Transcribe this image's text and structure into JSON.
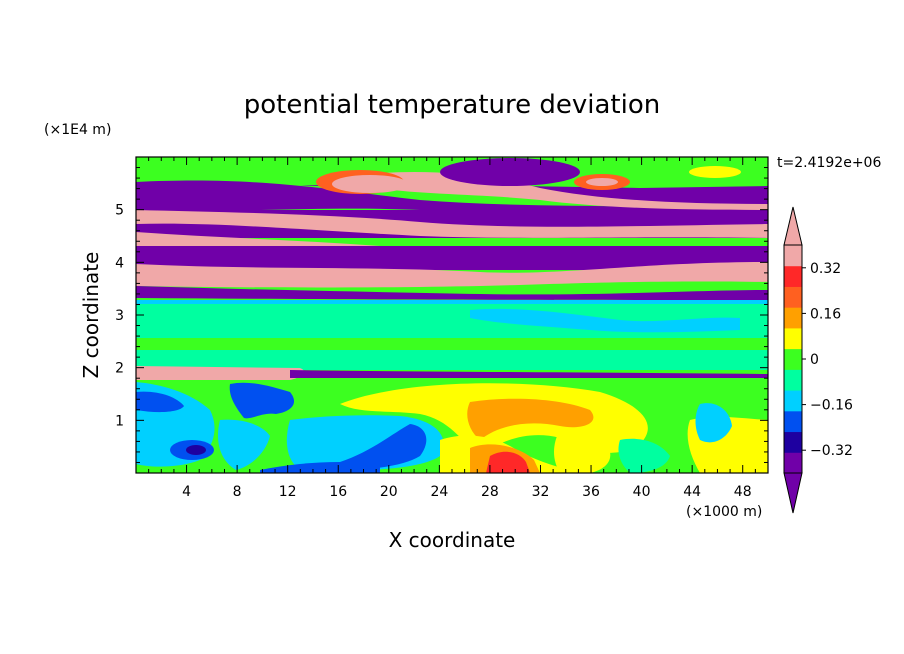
{
  "chart_data": {
    "type": "heatmap",
    "title": "potential temperature deviation",
    "xlabel": "X coordinate",
    "ylabel": "Z coordinate",
    "x_unit": "(×1000 m)",
    "y_unit": "(×1E4 m)",
    "time_label": "t=2.4192e+06",
    "xlim": [
      0,
      50
    ],
    "ylim": [
      0,
      6
    ],
    "x_ticks": [
      4,
      8,
      12,
      16,
      20,
      24,
      28,
      32,
      36,
      40,
      44,
      48
    ],
    "x_tick_labels": [
      "4",
      "8",
      "12",
      "16",
      "20",
      "24",
      "28",
      "32",
      "36",
      "40",
      "44",
      "48"
    ],
    "y_ticks": [
      1,
      2,
      3,
      4,
      5
    ],
    "y_tick_labels": [
      "1",
      "2",
      "3",
      "4",
      "5"
    ],
    "colorbar": {
      "levels": [
        -0.4,
        -0.32,
        -0.24,
        -0.16,
        -0.08,
        0,
        0.08,
        0.16,
        0.24,
        0.32,
        0.4
      ],
      "tick_values": [
        -0.32,
        -0.16,
        0,
        0.16,
        0.32
      ],
      "tick_labels": [
        "−0.32",
        "−0.16",
        "0",
        "0.16",
        "0.32"
      ],
      "colors": [
        "#7000a8",
        "#1e00a0",
        "#0050f0",
        "#00d0ff",
        "#00ffa0",
        "#3cff20",
        "#ffff00",
        "#ffa000",
        "#ff6020",
        "#ff2828",
        "#f0a8a8"
      ],
      "under_color": "#7000a8",
      "over_color": "#f0a8a8"
    }
  }
}
